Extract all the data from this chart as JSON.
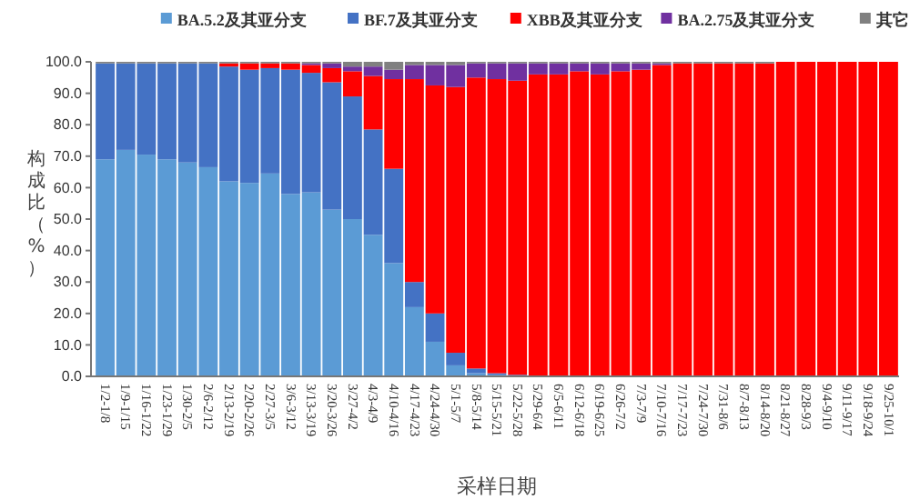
{
  "chart_data": {
    "type": "bar",
    "stacked": true,
    "xlabel": "采样日期",
    "ylabel": "构成比（%）",
    "legend": "top",
    "categories": [
      "1/2-1/8",
      "1/9-1/15",
      "1/16-1/22",
      "1/23-1/29",
      "1/30-2/5",
      "2/6-2/12",
      "2/13-2/19",
      "2/20-2/26",
      "2/27-3/5",
      "3/6-3/12",
      "3/13-3/19",
      "3/20-3/26",
      "3/27-4/2",
      "4/3-4/9",
      "4/10-4/16",
      "4/17-4/23",
      "4/24-4/30",
      "5/1-5/7",
      "5/8-5/14",
      "5/15-5/21",
      "5/22-5/28",
      "5/29-6/4",
      "6/5-6/11",
      "6/12-6/18",
      "6/19-6/25",
      "6/26-7/2",
      "7/3-7/9",
      "7/10-7/16",
      "7/17-7/23",
      "7/24-7/30",
      "7/31-8/6",
      "8/7-8/13",
      "8/14-8/20",
      "8/21-8/27",
      "8/28-9/3",
      "9/4-9/10",
      "9/11-9/17",
      "9/18-9/24",
      "9/25-10/1"
    ],
    "series": [
      {
        "name": "BA.5.2及其亚分支",
        "color": "#5b9bd5",
        "values": [
          69,
          72,
          70.5,
          69,
          68,
          66.5,
          62,
          61.5,
          64.5,
          58,
          58.5,
          53,
          50,
          45,
          36,
          22,
          11,
          3.5,
          1,
          0.5,
          0,
          0,
          0,
          0,
          0,
          0,
          0,
          0,
          0,
          0,
          0,
          0,
          0,
          0,
          0,
          0,
          0,
          0,
          0
        ]
      },
      {
        "name": "BF.7及其亚分支",
        "color": "#4472c4",
        "values": [
          30.5,
          27.5,
          29,
          30.5,
          31.5,
          33,
          36.5,
          36,
          33.5,
          39.5,
          38,
          40.5,
          39,
          33.5,
          30,
          8,
          9,
          4,
          1.5,
          0.5,
          0.5,
          0,
          0,
          0,
          0,
          0,
          0,
          0,
          0,
          0,
          0,
          0,
          0,
          0,
          0,
          0,
          0,
          0,
          0
        ]
      },
      {
        "name": "XBB及其亚分支",
        "color": "#ff0000",
        "values": [
          0,
          0,
          0,
          0,
          0,
          0,
          1,
          2,
          1.5,
          2,
          2.5,
          4.5,
          8,
          17,
          28.5,
          64.5,
          72.5,
          84.5,
          92.5,
          93.5,
          93.5,
          96,
          96,
          97,
          96,
          97,
          97.5,
          99,
          99.5,
          99.5,
          99.5,
          99.5,
          99.5,
          100,
          100,
          100,
          100,
          100,
          100
        ]
      },
      {
        "name": "BA.2.75及其亚分支",
        "color": "#7030a0",
        "values": [
          0,
          0,
          0,
          0,
          0,
          0,
          0,
          0,
          0,
          0,
          0.5,
          1.5,
          1.5,
          3,
          3,
          4.5,
          6.5,
          7,
          4.5,
          5,
          5.5,
          3.5,
          3.5,
          2.5,
          3.5,
          2.5,
          2,
          0.5,
          0,
          0,
          0,
          0,
          0,
          0,
          0,
          0,
          0,
          0,
          0
        ]
      },
      {
        "name": "其它",
        "color": "#808080",
        "values": [
          0.5,
          0.5,
          0.5,
          0.5,
          0.5,
          0.5,
          0.5,
          0.5,
          0.5,
          0.5,
          0.5,
          0.5,
          1.5,
          1.5,
          2.5,
          1,
          1,
          1,
          0.5,
          0.5,
          0.5,
          0.5,
          0.5,
          0.5,
          0.5,
          0.5,
          0.5,
          0.5,
          0.5,
          0.5,
          0.5,
          0.5,
          0.5,
          0,
          0,
          0,
          0,
          0,
          0
        ]
      }
    ],
    "ylim": [
      0,
      100
    ],
    "yticks": [
      {
        "value": 0,
        "label": "0.0"
      },
      {
        "value": 10,
        "label": "10.0"
      },
      {
        "value": 20,
        "label": "20.0"
      },
      {
        "value": 30,
        "label": "30.0"
      },
      {
        "value": 40,
        "label": "40.0"
      },
      {
        "value": 50,
        "label": "50.0"
      },
      {
        "value": 60,
        "label": "60.0"
      },
      {
        "value": 70,
        "label": "70.0"
      },
      {
        "value": 80,
        "label": "80.0"
      },
      {
        "value": 90,
        "label": "90.0"
      },
      {
        "value": 100,
        "label": "100.0"
      }
    ]
  }
}
